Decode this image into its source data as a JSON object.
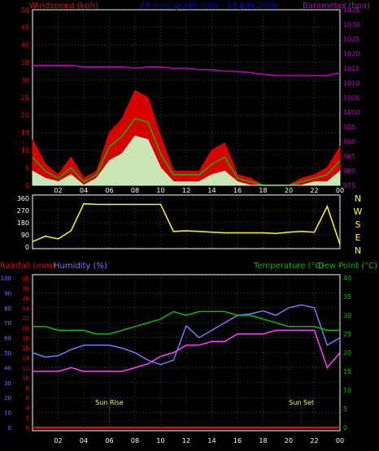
{
  "colors": {
    "wind": "#ff0000",
    "wind_avg": "#00c000",
    "wind_min": "#c8ffc8",
    "barometer": "#c000c0",
    "direction": "#ffff00",
    "rainfall": "#ff0000",
    "humidity": "#7878ff",
    "temperature": "#00c000",
    "dew_point": "#ff40ff",
    "axis": "#ffffff",
    "rain_axis": "#ff0000",
    "hum_axis": "#7878ff",
    "temp_axis": "#00c000",
    "grid": "#808080",
    "title": "#0000ff"
  },
  "chart_data": [
    {
      "type": "line",
      "id": "wind",
      "title": "24 hour graph data - 14 JUN 2006",
      "ylabel": "Windspeed (kph)",
      "y2label": "Barometer (hpa)",
      "ylim": [
        0,
        50
      ],
      "y2lim": [
        975,
        1035
      ],
      "yticks": [
        "0",
        "5",
        "10",
        "15",
        "20",
        "25",
        "30",
        "35",
        "40",
        "45",
        "50"
      ],
      "y2ticks": [
        "975",
        "980",
        "985",
        "990",
        "995",
        "1000",
        "1005",
        "1010",
        "1015",
        "1020",
        "1025",
        "1030",
        "1035"
      ],
      "x_hours": [
        0,
        1,
        2,
        3,
        4,
        5,
        6,
        7,
        8,
        9,
        10,
        11,
        12,
        13,
        14,
        15,
        16,
        17,
        18,
        19,
        20,
        21,
        22,
        23,
        24
      ],
      "series": [
        {
          "key": "gust",
          "values": [
            13,
            6,
            3,
            8,
            2,
            4,
            15,
            19,
            27,
            25,
            14,
            4,
            4,
            4,
            10,
            12,
            3,
            2,
            0,
            0,
            0,
            2,
            3,
            5,
            11
          ]
        },
        {
          "key": "avg",
          "values": [
            8,
            4,
            2,
            5,
            1,
            3,
            11,
            14,
            19,
            18,
            9,
            3,
            3,
            3,
            6,
            8,
            2,
            1,
            0,
            0,
            0,
            1,
            2,
            3,
            7
          ]
        },
        {
          "key": "min",
          "values": [
            4,
            2,
            1,
            3,
            0,
            2,
            7,
            9,
            14,
            13,
            5,
            1,
            1,
            1,
            3,
            4,
            1,
            0,
            0,
            0,
            0,
            0,
            1,
            1,
            4
          ]
        },
        {
          "key": "barometer",
          "values": [
            1016,
            1016,
            1016,
            1016,
            1015.5,
            1015.5,
            1015.5,
            1015.5,
            1015,
            1015.5,
            1015.5,
            1015,
            1015,
            1014.5,
            1014.5,
            1014,
            1014,
            1013.5,
            1013,
            1012.5,
            1012.5,
            1012.5,
            1012.5,
            1012.5,
            1013.5
          ]
        }
      ]
    },
    {
      "type": "line",
      "id": "direction",
      "ylim": [
        0,
        360
      ],
      "yticks": [
        "0",
        "90",
        "180",
        "270",
        "360"
      ],
      "compass": [
        "N",
        "W",
        "S",
        "E",
        "N"
      ],
      "x_hours": [
        0,
        1,
        2,
        3,
        4,
        5,
        6,
        7,
        8,
        9,
        10,
        11,
        12,
        13,
        14,
        15,
        16,
        17,
        18,
        19,
        20,
        21,
        22,
        23,
        24
      ],
      "series": [
        {
          "key": "direction",
          "values": [
            40,
            80,
            60,
            120,
            320,
            315,
            315,
            315,
            315,
            315,
            315,
            115,
            120,
            115,
            110,
            105,
            105,
            105,
            105,
            100,
            110,
            115,
            110,
            300,
            20
          ]
        }
      ]
    },
    {
      "type": "line",
      "id": "climate",
      "ylabel_rain": "Rainfall (mm)",
      "ylabel_hum": "Humidity (%)",
      "y2label_temp": "Temperature (°C)",
      "y2label_dew": "Dew Point (°C)",
      "rain_ylim": [
        0,
        30
      ],
      "hum_ylim": [
        0,
        100
      ],
      "temp_ylim": [
        0,
        40
      ],
      "rain_ticks": [
        "0",
        "2",
        "4",
        "6",
        "8",
        "10",
        "12",
        "14",
        "16",
        "18",
        "20",
        "22",
        "24",
        "26",
        "28",
        "30"
      ],
      "hum_ticks": [
        "0",
        "10",
        "20",
        "30",
        "40",
        "50",
        "60",
        "70",
        "80",
        "90",
        "100"
      ],
      "temp_ticks": [
        "0",
        "5",
        "10",
        "15",
        "20",
        "25",
        "30",
        "35",
        "40"
      ],
      "x_hours": [
        0,
        1,
        2,
        3,
        4,
        5,
        6,
        7,
        8,
        9,
        10,
        11,
        12,
        13,
        14,
        15,
        16,
        17,
        18,
        19,
        20,
        21,
        22,
        23,
        24
      ],
      "series": [
        {
          "key": "rainfall",
          "values": [
            0,
            0,
            0,
            0,
            0,
            0,
            0,
            0,
            0,
            0,
            0,
            0,
            0,
            0,
            0,
            0,
            0,
            0,
            0,
            0,
            0,
            0,
            0,
            0,
            0
          ]
        },
        {
          "key": "humidity",
          "values": [
            50,
            47,
            48,
            52,
            55,
            55,
            55,
            53,
            50,
            45,
            42,
            45,
            68,
            60,
            65,
            70,
            75,
            76,
            78,
            75,
            80,
            82,
            80,
            55,
            60
          ]
        },
        {
          "key": "temperature",
          "values": [
            27,
            27,
            26,
            26,
            26,
            25,
            25,
            26,
            27,
            28,
            29,
            31,
            30,
            31,
            31,
            31,
            30,
            30,
            29,
            28,
            27,
            27,
            27,
            26,
            26
          ]
        },
        {
          "key": "dew_point",
          "values": [
            15,
            15,
            15,
            16,
            15,
            15,
            15,
            15,
            16,
            17,
            19,
            20,
            22,
            22,
            23,
            23,
            25,
            25,
            25,
            26,
            26,
            26,
            26,
            16,
            20
          ]
        }
      ],
      "markers": [
        {
          "label": "Sun Rise",
          "hour": 6
        },
        {
          "label": "Sun Set",
          "hour": 21
        }
      ]
    }
  ],
  "x_labels": [
    "02",
    "04",
    "06",
    "08",
    "10",
    "12",
    "14",
    "16",
    "18",
    "20",
    "22",
    "00"
  ]
}
